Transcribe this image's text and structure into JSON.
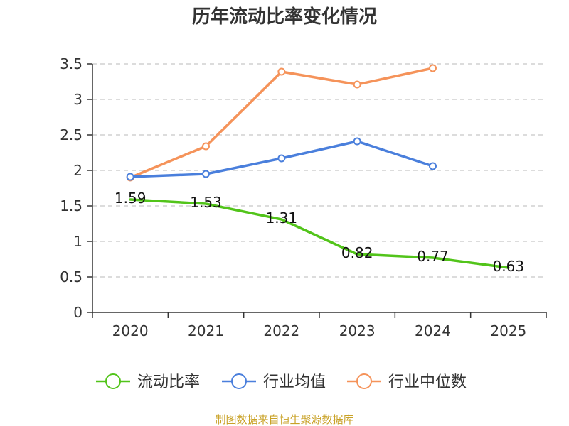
{
  "chart_data": {
    "type": "line",
    "title": "历年流动比率变化情况",
    "categories": [
      "2020",
      "2021",
      "2022",
      "2023",
      "2024",
      "2025"
    ],
    "y_ticks": [
      "0",
      "0.5",
      "1",
      "1.5",
      "2",
      "2.5",
      "3",
      "3.5"
    ],
    "ylim": [
      0,
      3.5
    ],
    "grid": true,
    "legend_position": "bottom",
    "series": [
      {
        "name": "流动比率",
        "color": "#52c41a",
        "values": [
          1.59,
          1.53,
          1.31,
          0.82,
          0.77,
          0.63
        ],
        "labels": [
          "1.59",
          "1.53",
          "1.31",
          "0.82",
          "0.77",
          "0.63"
        ],
        "show_markers": false
      },
      {
        "name": "行业均值",
        "color": "#4a7fdc",
        "values": [
          1.91,
          1.95,
          2.17,
          2.41,
          2.06,
          null
        ],
        "show_markers": true
      },
      {
        "name": "行业中位数",
        "color": "#f5935a",
        "values": [
          1.9,
          2.34,
          3.39,
          3.21,
          3.44,
          null
        ],
        "show_markers": true
      }
    ]
  },
  "source_text": "制图数据来自恒生聚源数据库"
}
